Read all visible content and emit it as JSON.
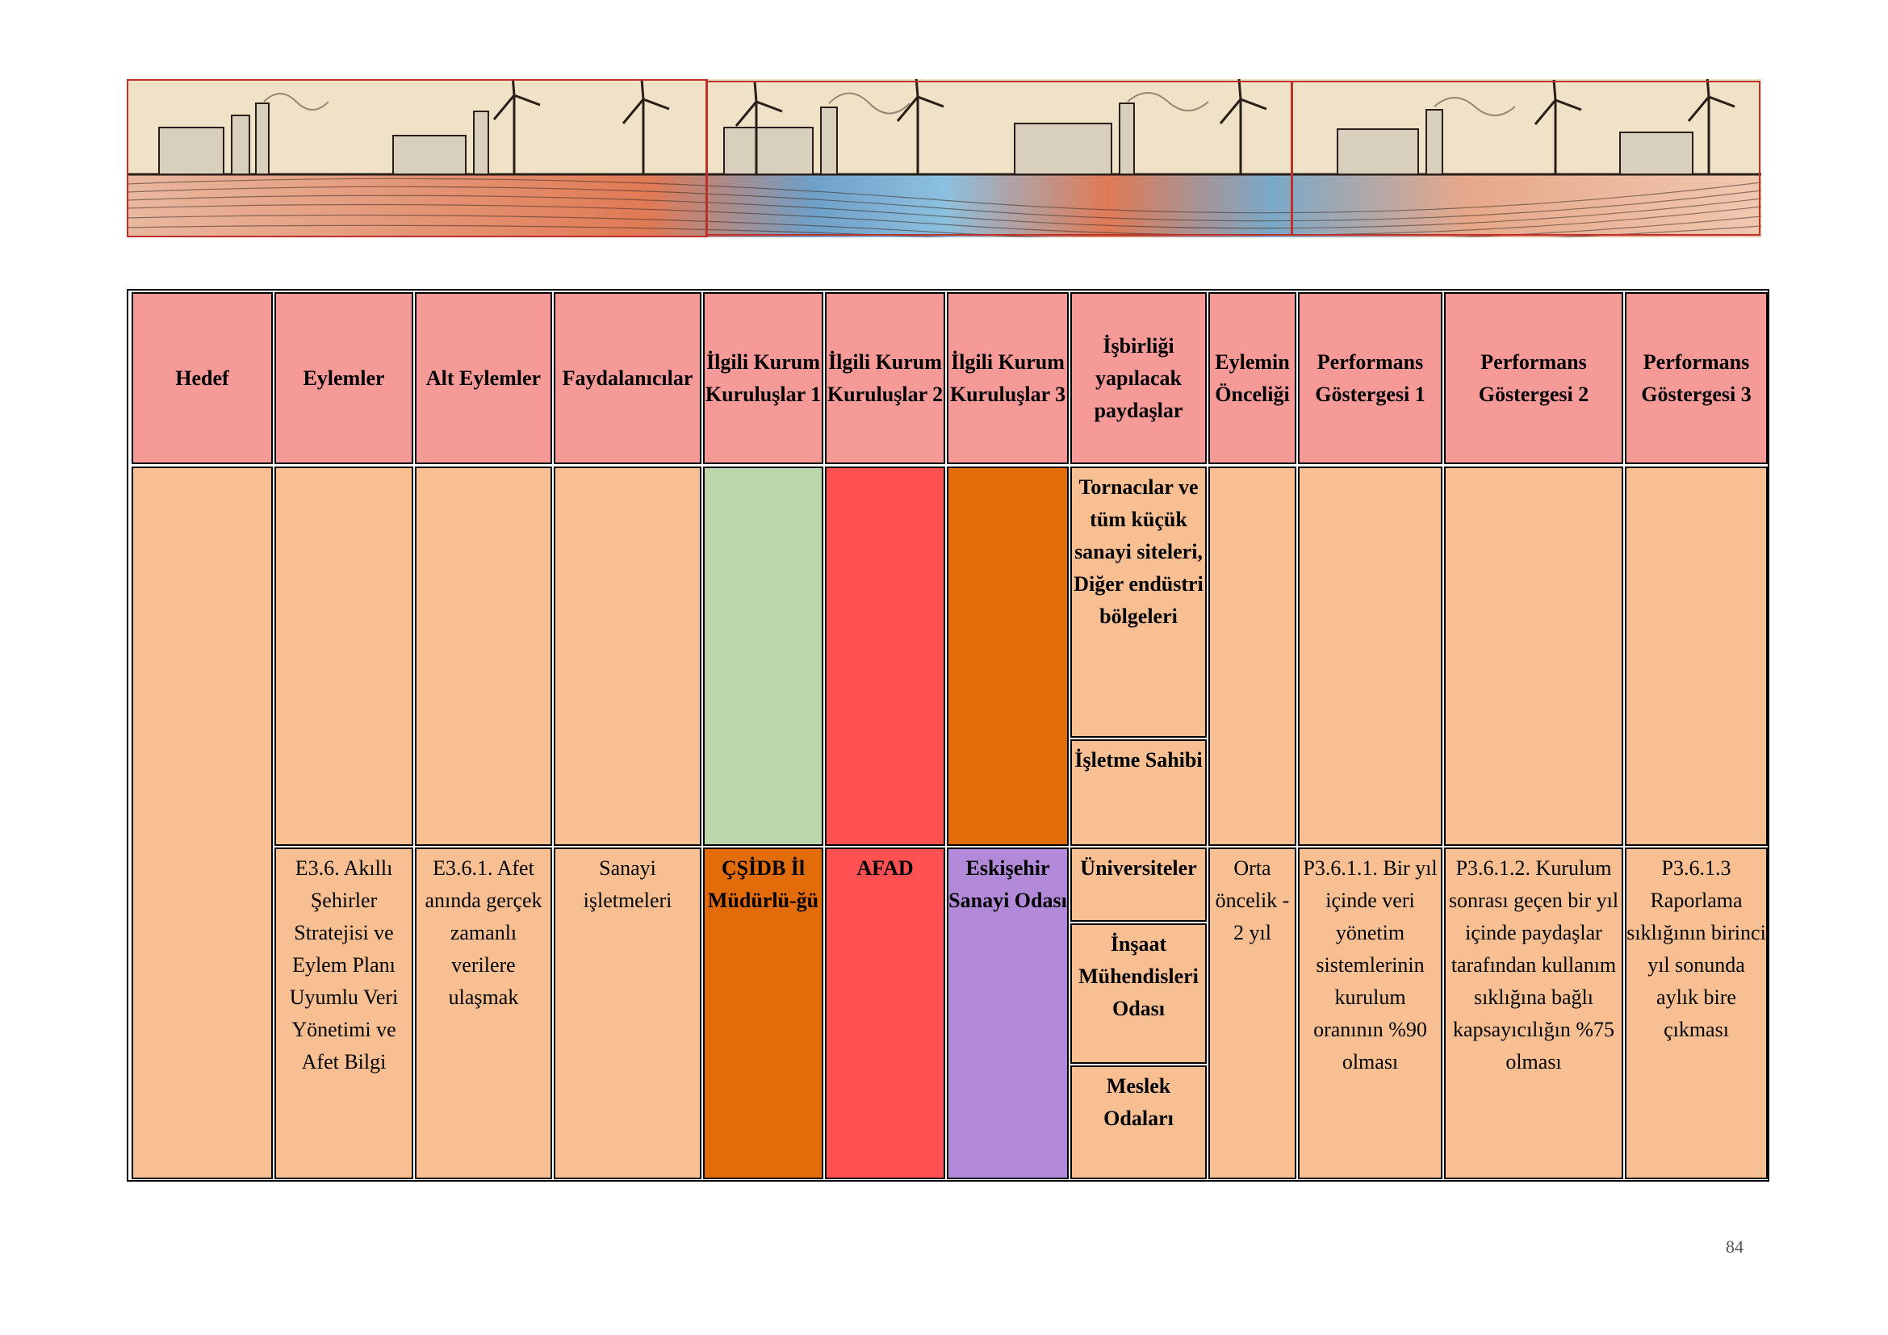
{
  "banner": {
    "icon": "industrial-landscape-illustration"
  },
  "table": {
    "headers": [
      "Hedef",
      "Eylemler",
      "Alt Eylemler",
      "Faydalanıcılar",
      "İlgili Kurum Kuruluşlar 1",
      "İlgili Kurum Kuruluşlar 2",
      "İlgili Kurum Kuruluşlar 3",
      "İşbirliği yapılacak paydaşlar",
      "Eylemin Önceliği",
      "Performans Göstergesi 1",
      "Performans Göstergesi 2",
      "Performans Göstergesi 3"
    ],
    "stakeholders_upper": [
      "Tornacılar ve tüm küçük sanayi siteleri, Diğer endüstri bölgeleri",
      "İşletme Sahibi"
    ],
    "row": {
      "eylemler": "E3.6. Akıllı Şehirler Stratejisi ve Eylem Planı Uyumlu Veri Yönetimi ve Afet Bilgi",
      "alt_eylemler": "E3.6.1. Afet anında gerçek zamanlı verilere ulaşmak",
      "faydalanicilar": "Sanayi işletmeleri",
      "kurum1": "ÇŞİDB İl Müdürlü-ğü",
      "kurum2": "AFAD",
      "kurum3": "Eskişehir Sanayi Odası",
      "paydaslar": [
        "Üniversiteler",
        "İnşaat Mühendisleri Odası",
        "Meslek Odaları"
      ],
      "oncelik": "Orta öncelik - 2 yıl",
      "pg1": "P3.6.1.1. Bir yıl içinde veri yönetim sistemlerinin kurulum oranının %90 olması",
      "pg2": "P3.6.1.2. Kurulum sonrası geçen bir yıl içinde paydaşlar tarafından kullanım sıklığına bağlı kapsayıcılığın %75 olması",
      "pg3": "P3.6.1.3 Raporlama sıklığının birinci yıl sonunda aylık bire çıkması"
    },
    "colors": {
      "header": "#f69a98",
      "peach": "#f8c092",
      "green": "#bbd6aa",
      "red": "#ff5052",
      "orange": "#e26b0a",
      "purple": "#b38ad9"
    }
  },
  "page_number": "84"
}
